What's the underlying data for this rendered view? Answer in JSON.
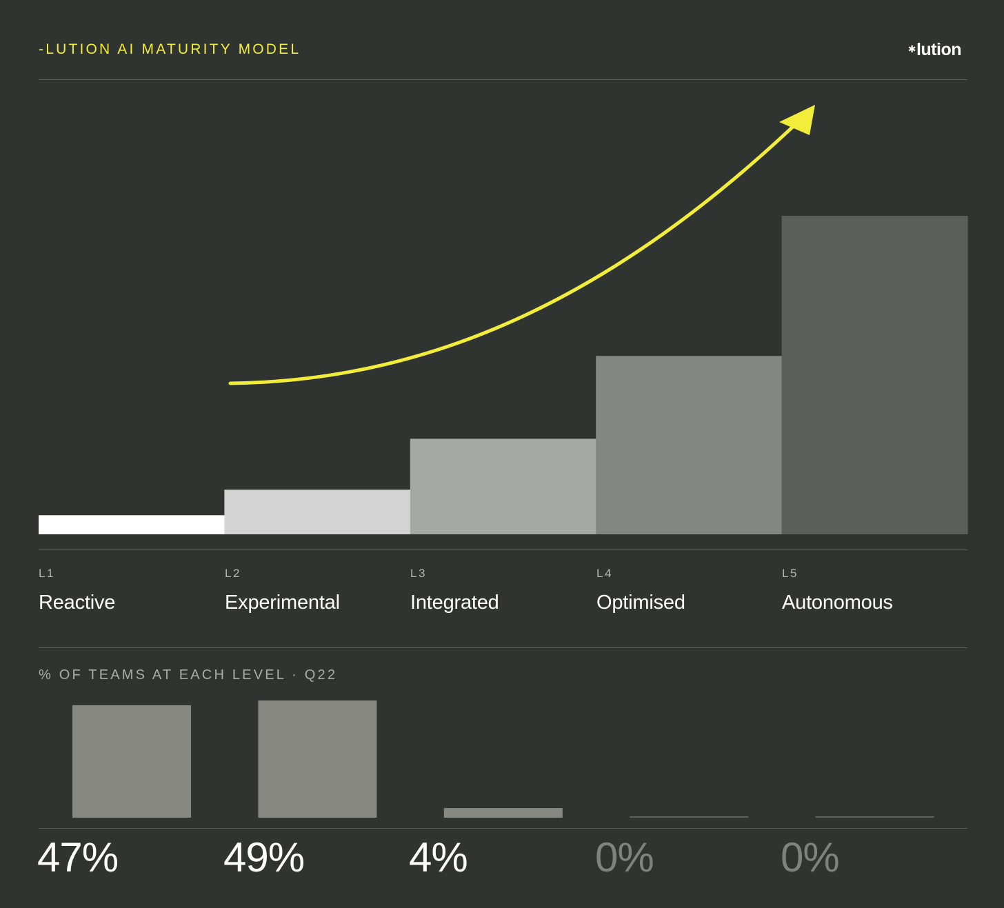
{
  "header": {
    "title": "-LUTION AI MATURITY MODEL",
    "logo_mark": "✱",
    "logo_text": "lution"
  },
  "colors": {
    "background": "#303431",
    "accent": "#f2ec3a",
    "rule": "#5a5e5b"
  },
  "chart_data": [
    {
      "type": "bar",
      "categories": [
        "L1",
        "L2",
        "L3",
        "L4",
        "L5"
      ],
      "names": [
        "Reactive",
        "Experimental",
        "Integrated",
        "Optimised",
        "Autonomous"
      ],
      "values": [
        0.6,
        1.4,
        3,
        5.6,
        10
      ],
      "ylim": [
        0,
        10
      ],
      "bar_colors": [
        "#ffffff",
        "#d4d4d4",
        "#a5a9a6",
        "#828783",
        "#5a5f5b"
      ],
      "annotation": "upward-trend-arrow",
      "annotation_color": "#f2ec3a",
      "grid": false
    },
    {
      "type": "bar",
      "title": "% OF TEAMS AT EACH LEVEL · Q22",
      "categories": [
        "L1",
        "L2",
        "L3",
        "L4",
        "L5"
      ],
      "values": [
        47,
        49,
        4,
        0,
        0
      ],
      "labels": [
        "47%",
        "49%",
        "4%",
        "0%",
        "0%"
      ],
      "label_colors": [
        "#ffffff",
        "#ffffff",
        "#ffffff",
        "#7f837f",
        "#7f837f"
      ],
      "bar_color": "#888882",
      "ylim": [
        0,
        49
      ],
      "grid": false
    }
  ]
}
